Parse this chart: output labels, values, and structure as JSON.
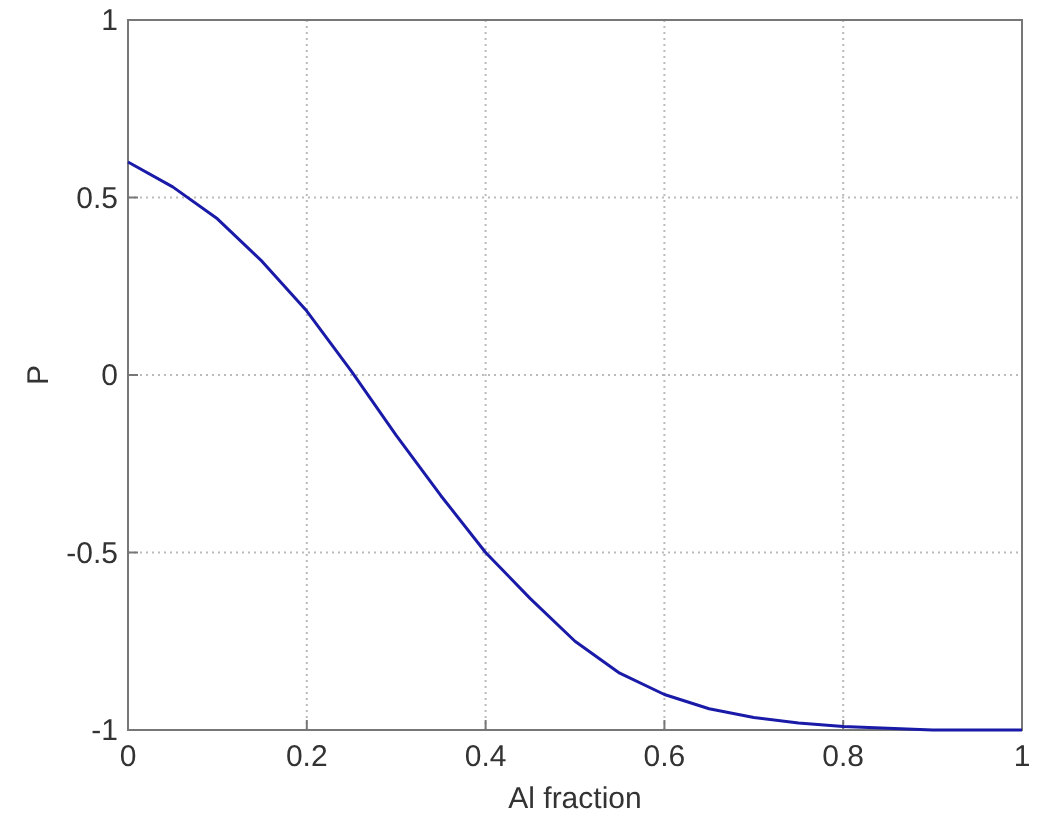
{
  "chart_data": {
    "type": "line",
    "xlabel": "Al fraction",
    "ylabel": "P",
    "x": [
      0,
      0.05,
      0.1,
      0.15,
      0.2,
      0.25,
      0.3,
      0.35,
      0.4,
      0.45,
      0.5,
      0.55,
      0.6,
      0.65,
      0.7,
      0.75,
      0.8,
      0.85,
      0.9,
      0.95,
      1
    ],
    "series": [
      {
        "color": "#1a1aa8",
        "values": [
          0.6,
          0.53,
          0.44,
          0.32,
          0.18,
          0.01,
          -0.17,
          -0.34,
          -0.5,
          -0.63,
          -0.75,
          -0.84,
          -0.9,
          -0.94,
          -0.965,
          -0.98,
          -0.99,
          -0.995,
          -1,
          -1,
          -1
        ]
      }
    ],
    "xlim": [
      0,
      1
    ],
    "xticks": [
      0,
      0.2,
      0.4,
      0.6,
      0.8,
      1
    ],
    "ylim": [
      -1,
      1
    ],
    "yticks": [
      -1,
      -0.5,
      0,
      0.5,
      1
    ],
    "grid": true,
    "line_style": "solid",
    "marker": "none"
  }
}
